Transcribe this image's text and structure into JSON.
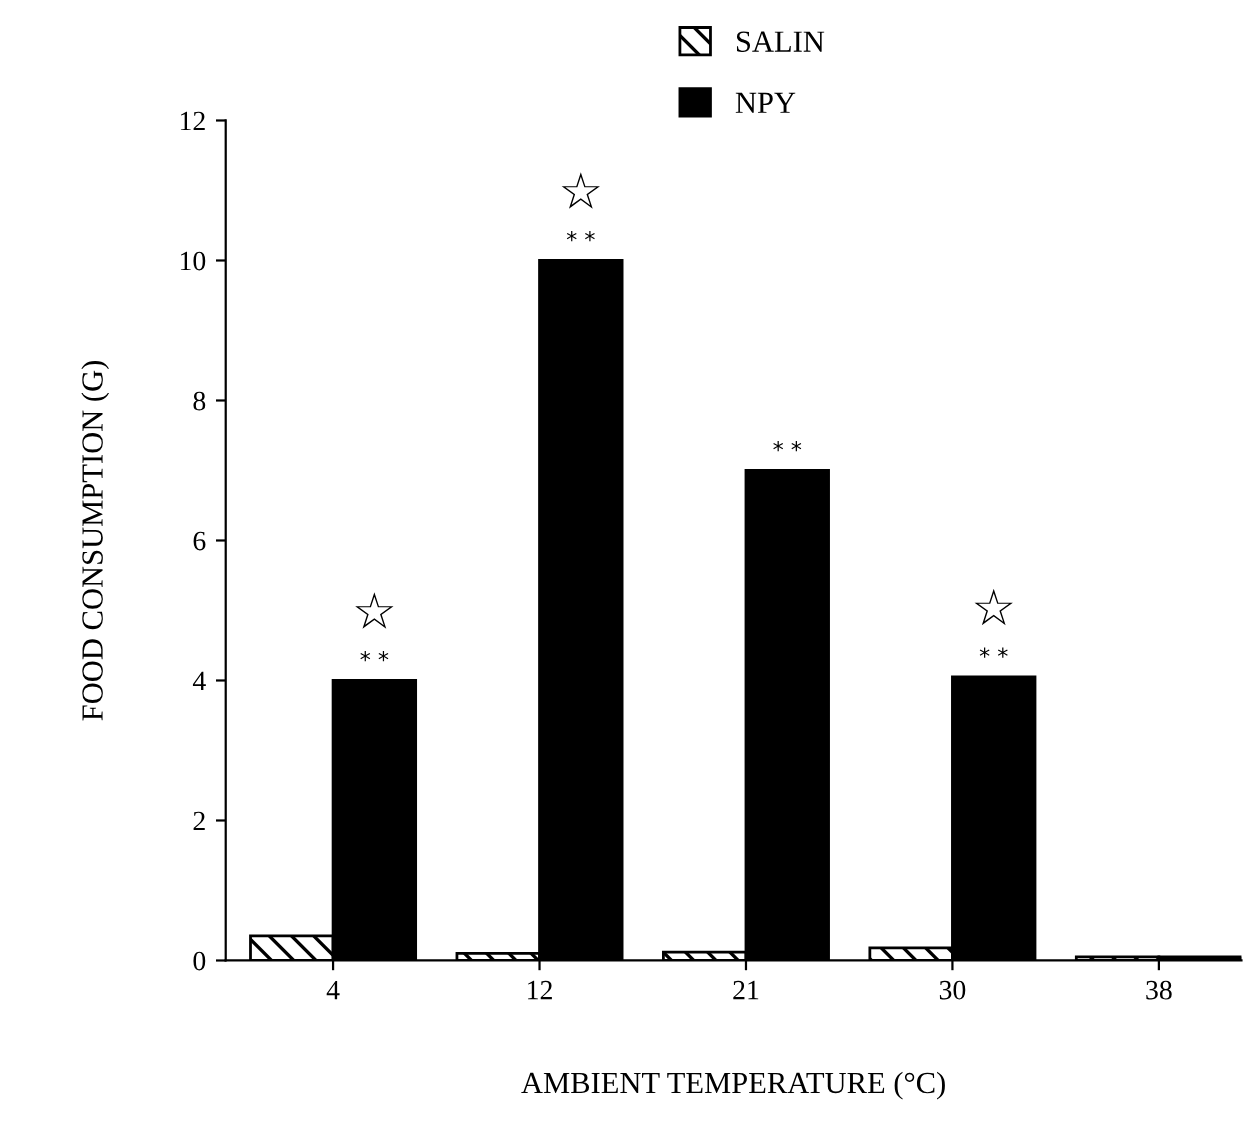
{
  "chart_data": {
    "type": "bar",
    "xlabel": "AMBIENT TEMPERATURE (°C)",
    "ylabel": "FOOD CONSUMPTION (G)",
    "categories": [
      "4",
      "12",
      "21",
      "30",
      "38"
    ],
    "series": [
      {
        "name": "SALIN",
        "color": "#000000",
        "values": [
          0.35,
          0.1,
          0.12,
          0.18,
          0.05
        ]
      },
      {
        "name": "NPY",
        "color": "#000000",
        "values": [
          4.0,
          10.0,
          7.0,
          4.05,
          0.05
        ]
      }
    ],
    "ylim": [
      0,
      12
    ],
    "yticks": [
      0,
      2,
      4,
      6,
      8,
      10,
      12
    ],
    "grid": false,
    "legend": "top",
    "annotations": [
      {
        "text": "* *",
        "x": "4",
        "y": 4.0
      },
      {
        "text": "* *",
        "x": "12",
        "y": 10.0
      },
      {
        "text": "* *",
        "x": "21",
        "y": 7.0
      },
      {
        "text": "* *",
        "x": "30",
        "y": 4.05
      },
      {
        "text": "☆",
        "x": "4",
        "y": 4.0
      },
      {
        "text": "☆",
        "x": "12",
        "y": 10.0
      },
      {
        "text": "☆",
        "x": "30",
        "y": 4.05
      }
    ]
  }
}
